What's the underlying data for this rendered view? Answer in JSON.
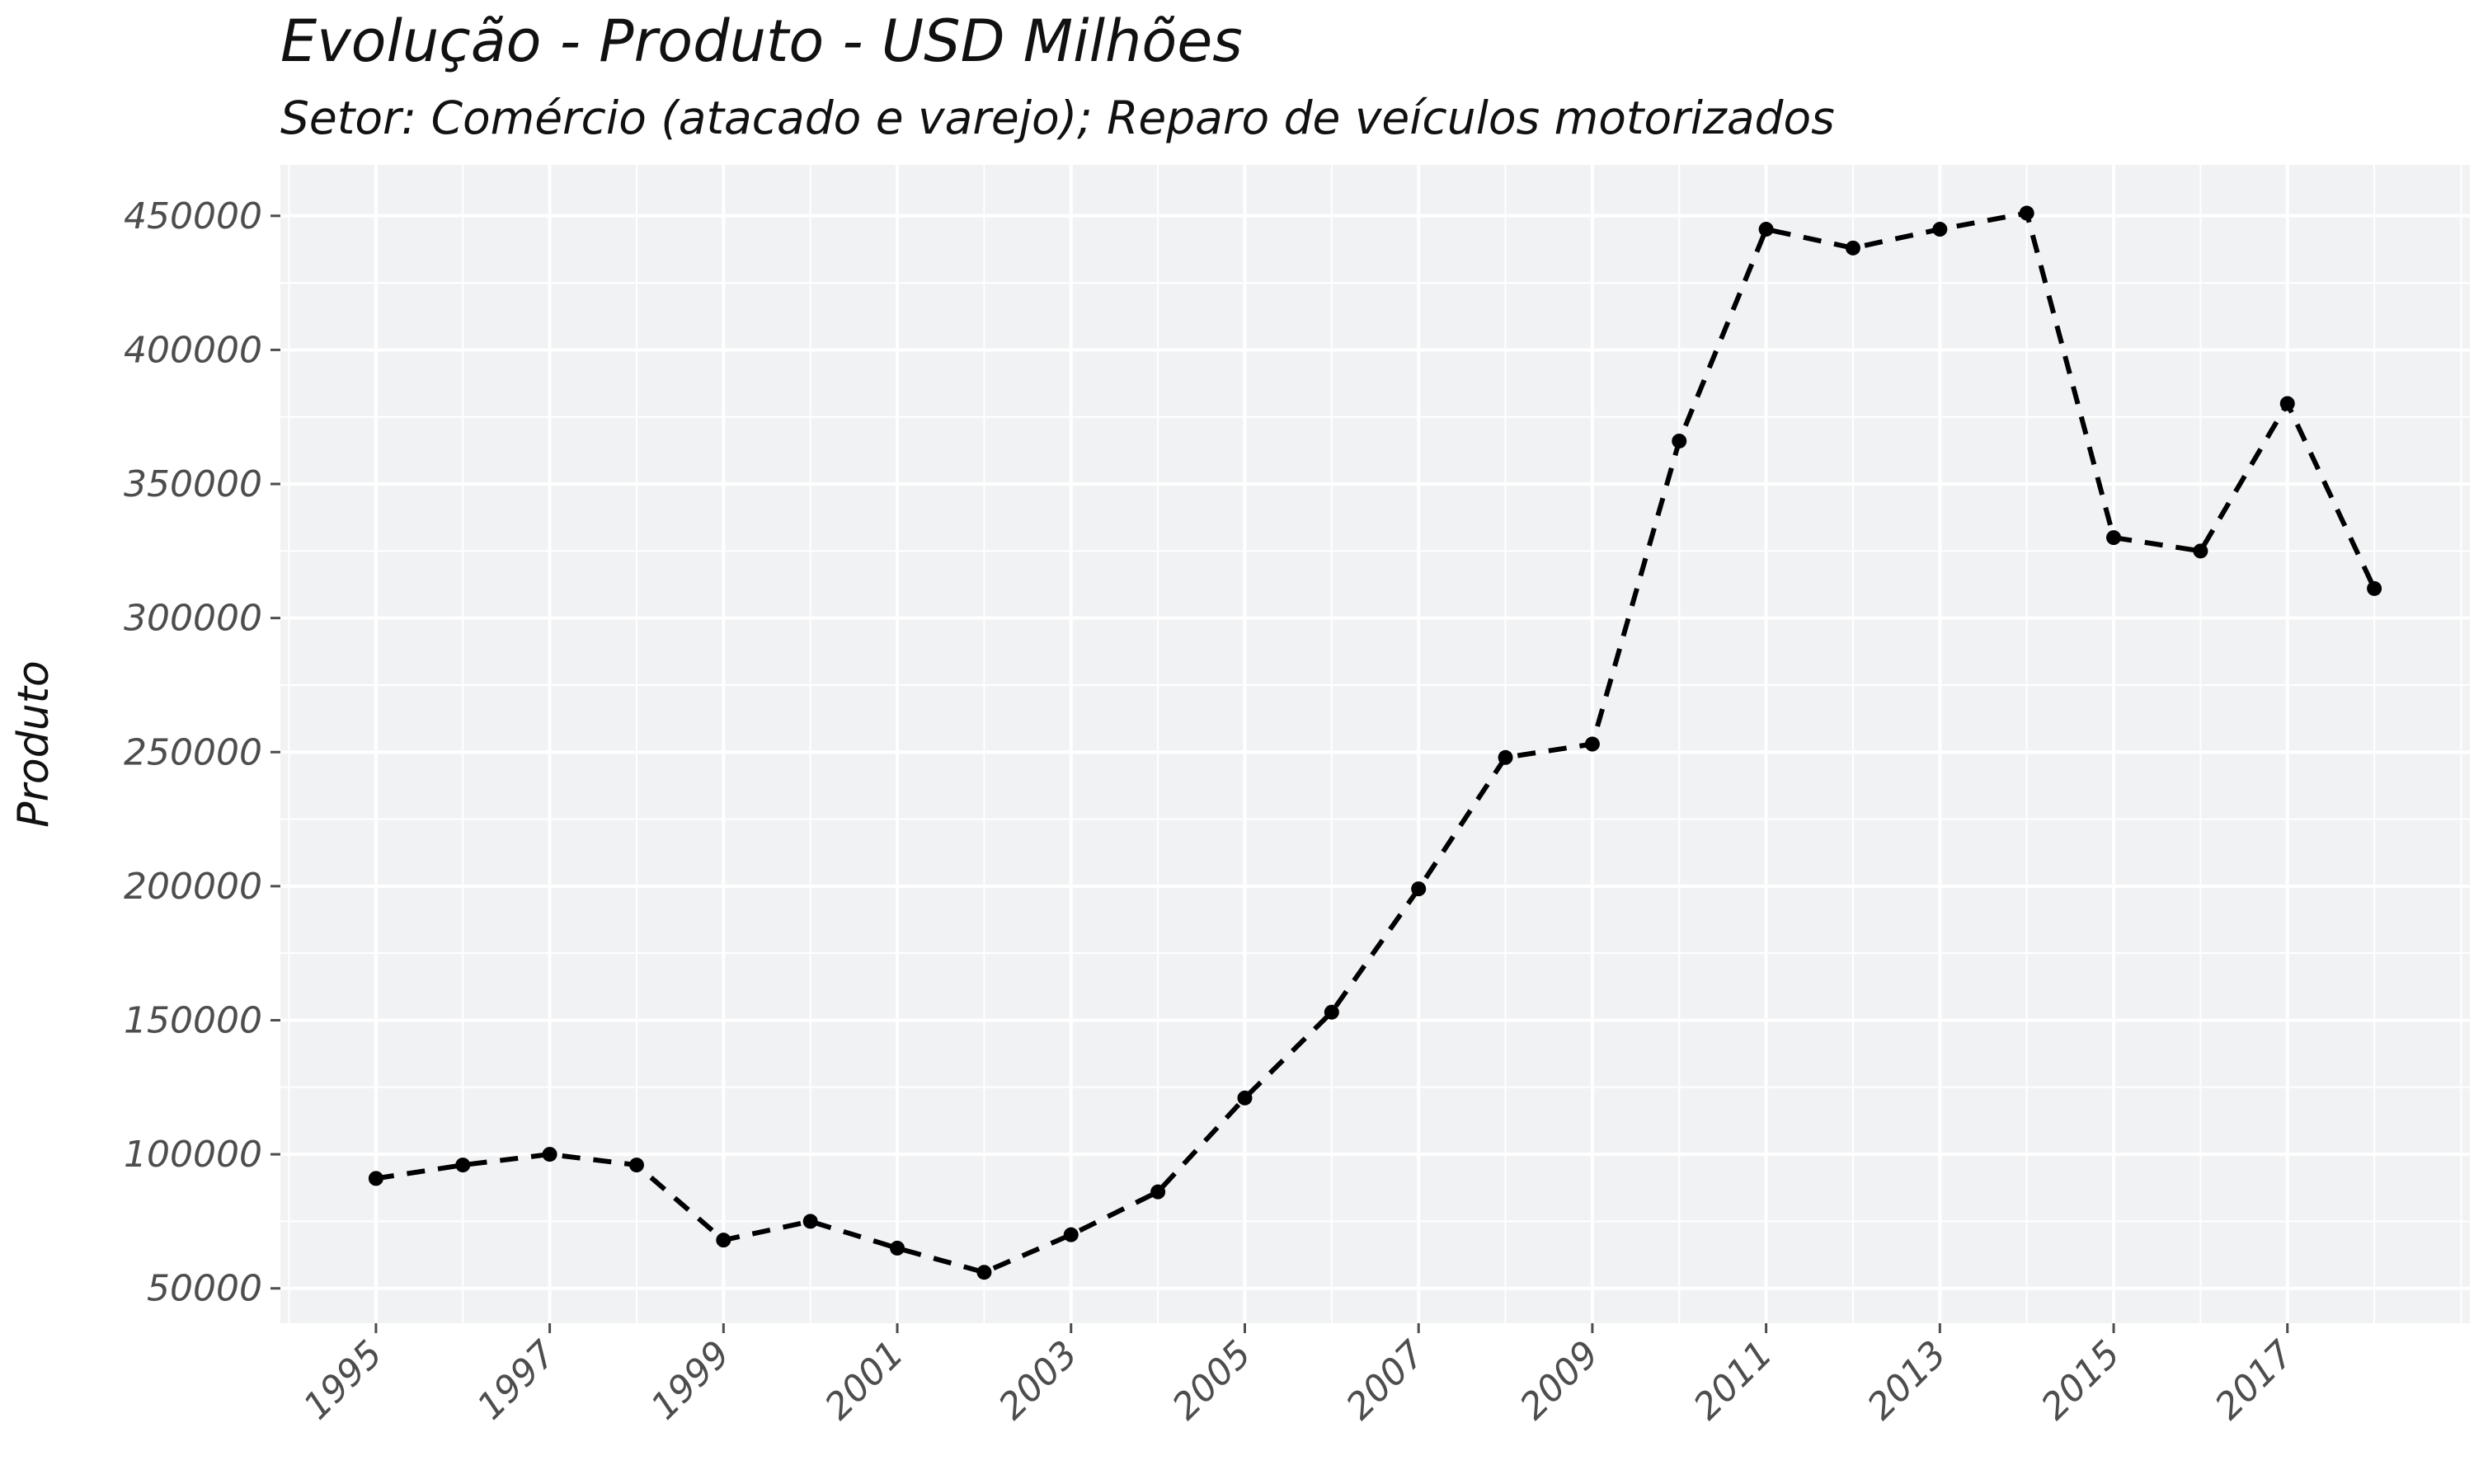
{
  "chart_data": {
    "type": "line",
    "title": "Evolução - Produto - USD Milhões",
    "subtitle": "Setor: Comércio (atacado e varejo); Reparo de veículos motorizados",
    "xlabel": "",
    "ylabel": "Produto",
    "x": [
      1995,
      1996,
      1997,
      1998,
      1999,
      2000,
      2001,
      2002,
      2003,
      2004,
      2005,
      2006,
      2007,
      2008,
      2009,
      2010,
      2011,
      2012,
      2013,
      2014,
      2015,
      2016,
      2017,
      2018
    ],
    "series": [
      {
        "values": [
          91000,
          96000,
          100000,
          96000,
          68000,
          75000,
          65000,
          56000,
          70000,
          86000,
          121000,
          153000,
          199000,
          248000,
          253000,
          366000,
          445000,
          438000,
          445000,
          451000,
          330000,
          325000,
          380000,
          311000
        ],
        "style": "dashed",
        "color": "#000000"
      }
    ],
    "xlim": [
      1993.9,
      2019.1
    ],
    "ylim": [
      37000,
      469000
    ],
    "x_ticks": [
      1995,
      1997,
      1999,
      2001,
      2003,
      2005,
      2007,
      2009,
      2011,
      2013,
      2015,
      2017
    ],
    "x_tick_labels": [
      "1995",
      "1997",
      "1999",
      "2001",
      "2003",
      "2005",
      "2007",
      "2009",
      "2011",
      "2013",
      "2015",
      "2017"
    ],
    "y_ticks": [
      50000,
      100000,
      150000,
      200000,
      250000,
      300000,
      350000,
      400000,
      450000
    ],
    "y_tick_labels": [
      "50000",
      "100000",
      "150000",
      "200000",
      "250000",
      "300000",
      "350000",
      "400000",
      "450000"
    ],
    "grid": true,
    "legend": "none",
    "colors": {
      "panel": "#f1f2f4",
      "grid": "#ffffff",
      "series": "#000000",
      "tick_text": "#4d4d4d"
    }
  }
}
